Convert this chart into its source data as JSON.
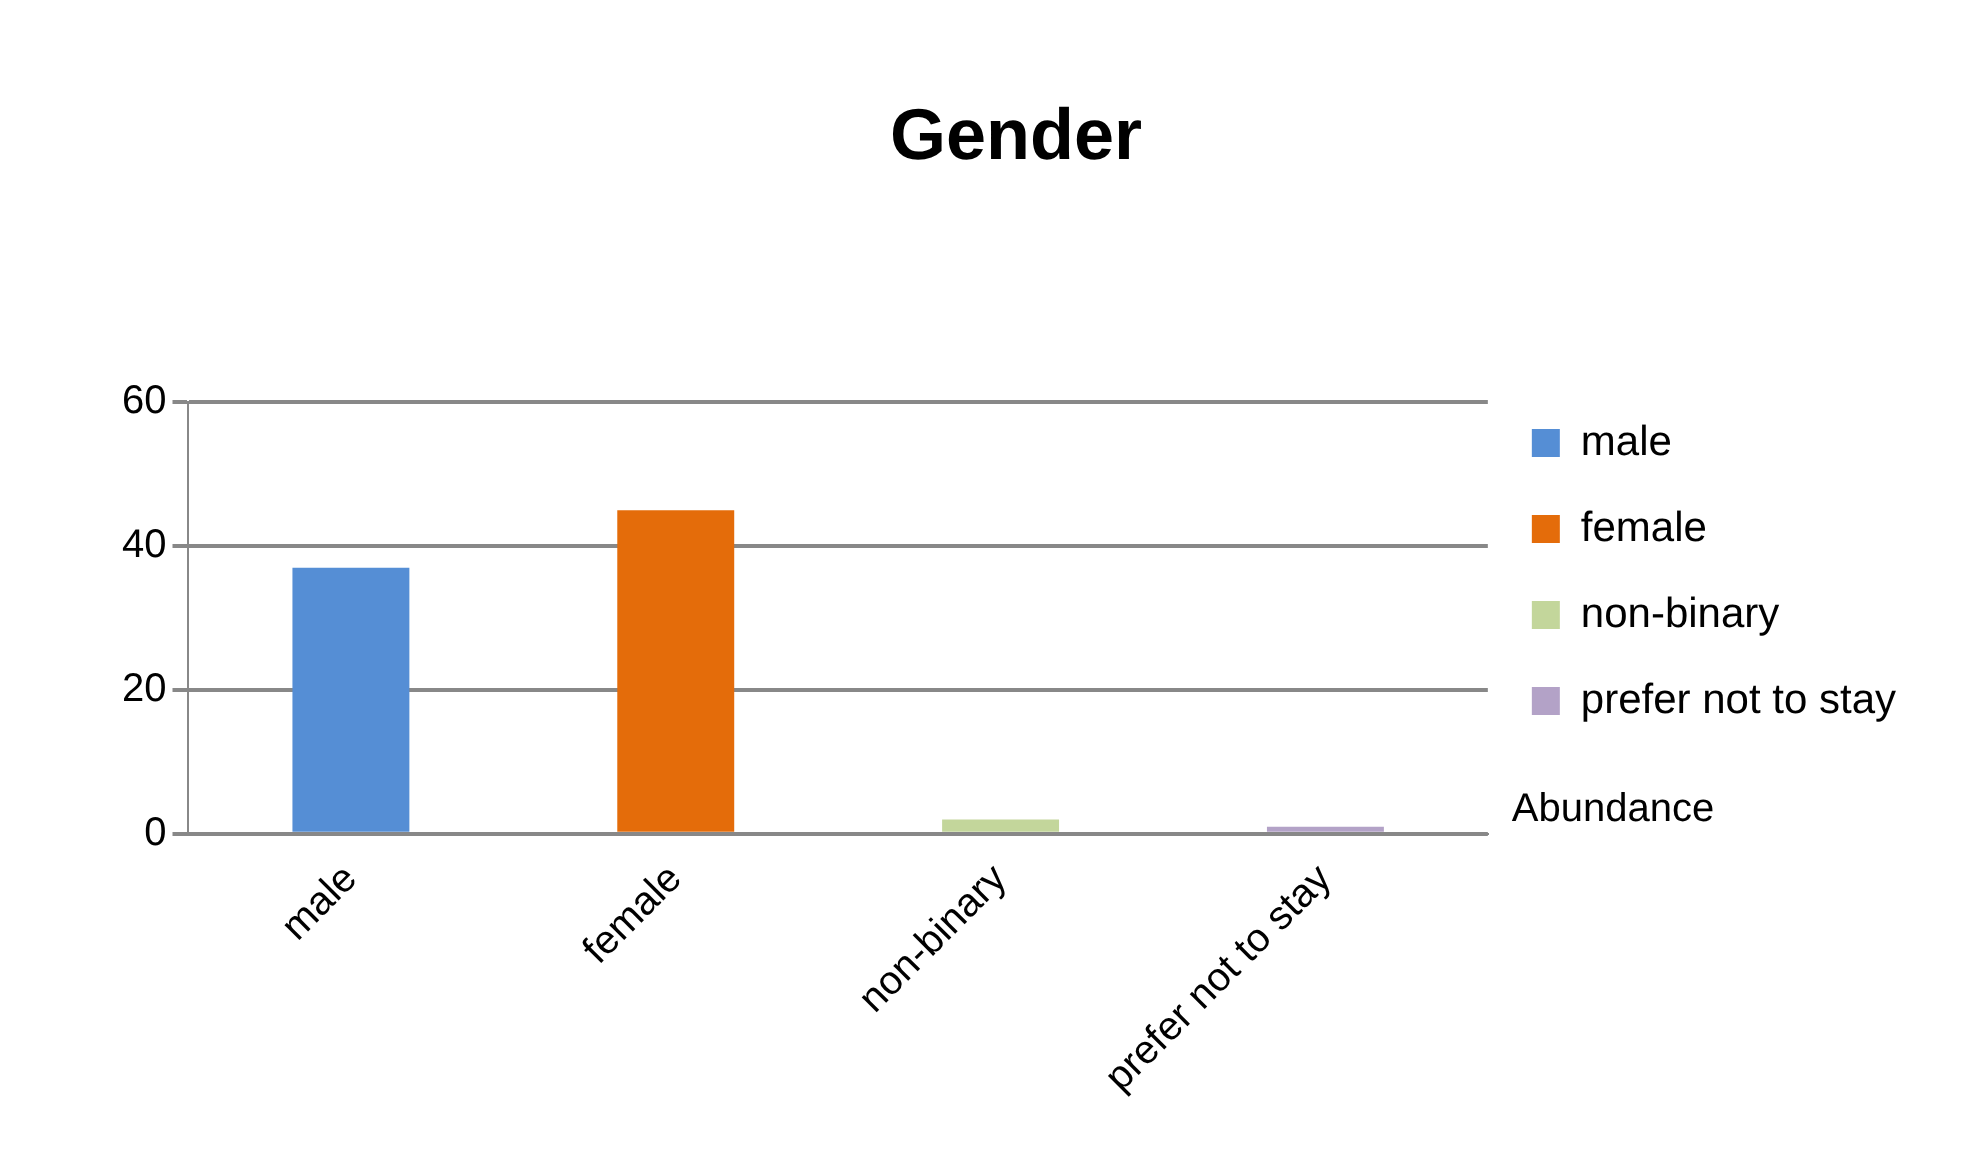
{
  "chart_data": {
    "type": "bar",
    "title": "Gender",
    "categories": [
      "male",
      "female",
      "non-binary",
      "prefer not to stay"
    ],
    "series": [
      {
        "name": "male",
        "color": "#558ed5",
        "values": [
          37,
          null,
          null,
          null
        ]
      },
      {
        "name": "female",
        "color": "#e46c0a",
        "values": [
          null,
          45,
          null,
          null
        ]
      },
      {
        "name": "non-binary",
        "color": "#c3d69b",
        "values": [
          null,
          null,
          2,
          null
        ]
      },
      {
        "name": "prefer not to stay",
        "color": "#b3a2c7",
        "values": [
          null,
          null,
          null,
          1
        ]
      }
    ],
    "ylim": [
      0,
      60
    ],
    "yticks": [
      0,
      20,
      40,
      60
    ],
    "grid": "y",
    "legend": "right",
    "annotations": [
      "Abundance"
    ]
  }
}
